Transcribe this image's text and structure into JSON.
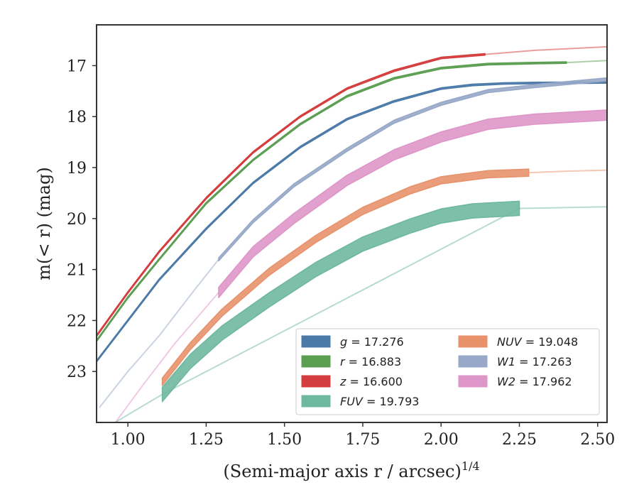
{
  "chart_data": {
    "type": "line",
    "xlabel": "(Semi-major axis r / arcsec)",
    "xlabel_sup": "1/4",
    "ylabel": "m(< r) (mag)",
    "xlim": [
      0.9,
      2.53
    ],
    "ylim": [
      24.0,
      16.2
    ],
    "y_inverted": true,
    "grid": false,
    "legend_position": "lower-right",
    "xticks": [
      1.0,
      1.25,
      1.5,
      1.75,
      2.0,
      2.25,
      2.5
    ],
    "xtick_labels": [
      "1.00",
      "1.25",
      "1.50",
      "1.75",
      "2.00",
      "2.25",
      "2.50"
    ],
    "yticks": [
      17,
      18,
      19,
      20,
      21,
      22,
      23
    ],
    "ytick_labels": [
      "17",
      "18",
      "19",
      "20",
      "21",
      "22",
      "23"
    ],
    "series": [
      {
        "name": "g = 17.276",
        "band": "g",
        "color": "#4c7aa8",
        "points": [
          [
            0.9,
            22.8
          ],
          [
            1.0,
            22.0
          ],
          [
            1.1,
            21.2
          ],
          [
            1.25,
            20.2
          ],
          [
            1.4,
            19.3
          ],
          [
            1.55,
            18.6
          ],
          [
            1.7,
            18.05
          ],
          [
            1.85,
            17.7
          ],
          [
            2.0,
            17.45
          ],
          [
            2.1,
            17.38
          ],
          [
            2.2,
            17.35
          ],
          [
            2.3,
            17.34
          ],
          [
            2.53,
            17.33
          ]
        ],
        "extension": [],
        "band_width": 0.03
      },
      {
        "name": "r = 16.883",
        "band": "r",
        "color": "#5b9e52",
        "points": [
          [
            0.9,
            22.4
          ],
          [
            1.0,
            21.55
          ],
          [
            1.1,
            20.8
          ],
          [
            1.25,
            19.7
          ],
          [
            1.4,
            18.85
          ],
          [
            1.55,
            18.15
          ],
          [
            1.7,
            17.6
          ],
          [
            1.85,
            17.25
          ],
          [
            2.0,
            17.05
          ],
          [
            2.15,
            16.97
          ],
          [
            2.3,
            16.95
          ],
          [
            2.4,
            16.94
          ]
        ],
        "extension": [
          [
            2.4,
            16.94
          ],
          [
            2.53,
            16.9
          ]
        ],
        "band_width": 0.03
      },
      {
        "name": "z = 16.600",
        "band": "z",
        "color": "#d43d3d",
        "points": [
          [
            0.9,
            22.3
          ],
          [
            1.0,
            21.45
          ],
          [
            1.1,
            20.65
          ],
          [
            1.25,
            19.6
          ],
          [
            1.4,
            18.7
          ],
          [
            1.55,
            18.0
          ],
          [
            1.7,
            17.45
          ],
          [
            1.85,
            17.1
          ],
          [
            2.0,
            16.85
          ],
          [
            2.14,
            16.78
          ]
        ],
        "extension": [
          [
            2.14,
            16.78
          ],
          [
            2.3,
            16.7
          ],
          [
            2.53,
            16.63
          ]
        ],
        "band_width": 0.03
      },
      {
        "name": "FUV = 19.793",
        "band": "FUV",
        "color": "#6fb8a0",
        "points": [
          [
            1.11,
            23.45
          ],
          [
            1.2,
            22.8
          ],
          [
            1.3,
            22.25
          ],
          [
            1.45,
            21.6
          ],
          [
            1.6,
            21.0
          ],
          [
            1.75,
            20.5
          ],
          [
            1.9,
            20.15
          ],
          [
            2.0,
            19.95
          ],
          [
            2.1,
            19.85
          ],
          [
            2.25,
            19.8
          ]
        ],
        "extension": [
          [
            0.96,
            24.0
          ],
          [
            1.0,
            23.85
          ],
          [
            1.11,
            23.45
          ],
          [
            2.25,
            19.8
          ],
          [
            2.53,
            19.77
          ]
        ],
        "band_width": 0.28
      },
      {
        "name": "NUV = 19.048",
        "band": "NUV",
        "color": "#e8926c",
        "points": [
          [
            1.11,
            23.2
          ],
          [
            1.2,
            22.5
          ],
          [
            1.3,
            21.85
          ],
          [
            1.45,
            21.05
          ],
          [
            1.6,
            20.4
          ],
          [
            1.75,
            19.85
          ],
          [
            1.9,
            19.45
          ],
          [
            2.0,
            19.25
          ],
          [
            2.15,
            19.13
          ],
          [
            2.28,
            19.1
          ]
        ],
        "extension": [
          [
            2.28,
            19.1
          ],
          [
            2.4,
            19.07
          ],
          [
            2.53,
            19.05
          ]
        ],
        "band_width": 0.14
      },
      {
        "name": "W1 = 17.263",
        "band": "W1",
        "color": "#97a8c8",
        "points": [
          [
            1.29,
            20.8
          ],
          [
            1.4,
            20.05
          ],
          [
            1.53,
            19.35
          ],
          [
            1.7,
            18.65
          ],
          [
            1.85,
            18.1
          ],
          [
            2.0,
            17.75
          ],
          [
            2.15,
            17.5
          ],
          [
            2.3,
            17.4
          ],
          [
            2.53,
            17.27
          ]
        ],
        "extension": [
          [
            0.91,
            23.7
          ],
          [
            1.0,
            23.0
          ],
          [
            1.1,
            22.3
          ],
          [
            1.2,
            21.5
          ],
          [
            1.29,
            20.8
          ]
        ],
        "band_width": 0.06
      },
      {
        "name": "W2 = 17.962",
        "band": "W2",
        "color": "#de96c8",
        "points": [
          [
            1.29,
            21.45
          ],
          [
            1.4,
            20.65
          ],
          [
            1.53,
            20.0
          ],
          [
            1.7,
            19.25
          ],
          [
            1.85,
            18.75
          ],
          [
            2.0,
            18.4
          ],
          [
            2.15,
            18.15
          ],
          [
            2.3,
            18.05
          ],
          [
            2.53,
            17.97
          ]
        ],
        "extension": [
          [
            0.96,
            24.0
          ],
          [
            1.05,
            23.25
          ],
          [
            1.15,
            22.45
          ],
          [
            1.29,
            21.45
          ]
        ],
        "band_width": 0.2
      }
    ]
  }
}
